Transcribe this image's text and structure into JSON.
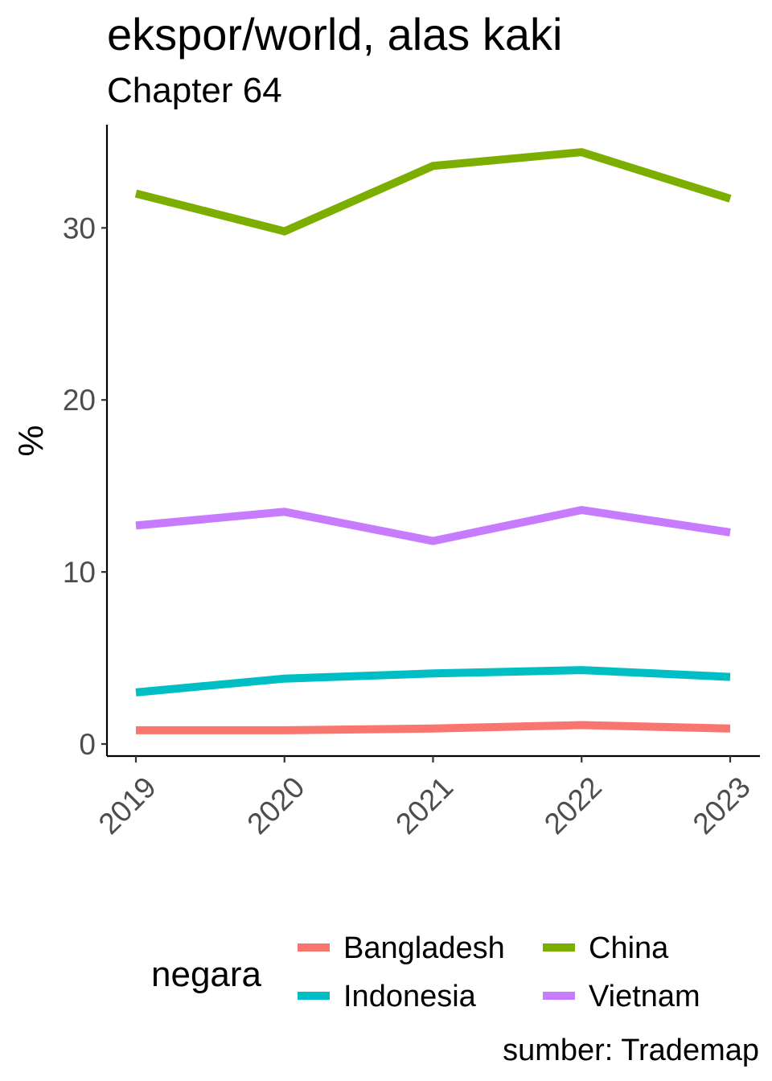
{
  "title": "ekspor/world, alas kaki",
  "subtitle": "Chapter 64",
  "caption": "sumber: Trademap",
  "chart_data": {
    "type": "line",
    "title": "ekspor/world, alas kaki",
    "subtitle": "Chapter 64",
    "xlabel": "",
    "ylabel": "%",
    "x": [
      "2019",
      "2020",
      "2021",
      "2022",
      "2023"
    ],
    "y_ticks": [
      "0",
      "10",
      "20",
      "30"
    ],
    "ylim": [
      -0.7,
      36
    ],
    "grid": false,
    "legend_title": "negara",
    "legend_position": "bottom",
    "series": [
      {
        "name": "Bangladesh",
        "color": "#F8766D",
        "values": [
          0.8,
          0.8,
          0.9,
          1.1,
          0.9
        ]
      },
      {
        "name": "China",
        "color": "#7CAE00",
        "values": [
          32.0,
          29.8,
          33.6,
          34.4,
          31.7
        ]
      },
      {
        "name": "Indonesia",
        "color": "#00BFC4",
        "values": [
          3.0,
          3.8,
          4.1,
          4.3,
          3.9
        ]
      },
      {
        "name": "Vietnam",
        "color": "#C77CFF",
        "values": [
          12.7,
          13.5,
          11.8,
          13.6,
          12.3
        ]
      }
    ]
  }
}
